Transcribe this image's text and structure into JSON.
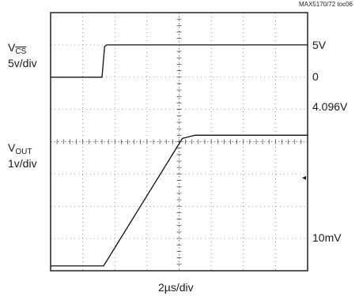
{
  "figure_tag": "MAX5170/72 toc06",
  "chart_data": {
    "type": "line",
    "grid": true,
    "x_label": "2µs/div",
    "x_divisions": 8,
    "y_divisions": 8,
    "series": [
      {
        "channel": "top",
        "scale_label_main": "V",
        "scale_label_sub": "CS",
        "scale_label_div": "5v/div",
        "level_labels": [
          "5V",
          "0"
        ],
        "points_div": [
          [
            0,
            6.0
          ],
          [
            1.6,
            6.0
          ],
          [
            1.68,
            6.95
          ],
          [
            1.75,
            7.0
          ],
          [
            8,
            7.0
          ]
        ]
      },
      {
        "channel": "bottom",
        "scale_label_main": "V",
        "scale_label_sub": "OUT",
        "scale_label_div": "1v/div",
        "level_labels": [
          "4.096V",
          "10mV"
        ],
        "points_div": [
          [
            0,
            0.15
          ],
          [
            1.65,
            0.15
          ],
          [
            4.1,
            4.1
          ],
          [
            4.5,
            4.2
          ],
          [
            8,
            4.2
          ]
        ]
      }
    ],
    "trigger_marker": "◂"
  }
}
